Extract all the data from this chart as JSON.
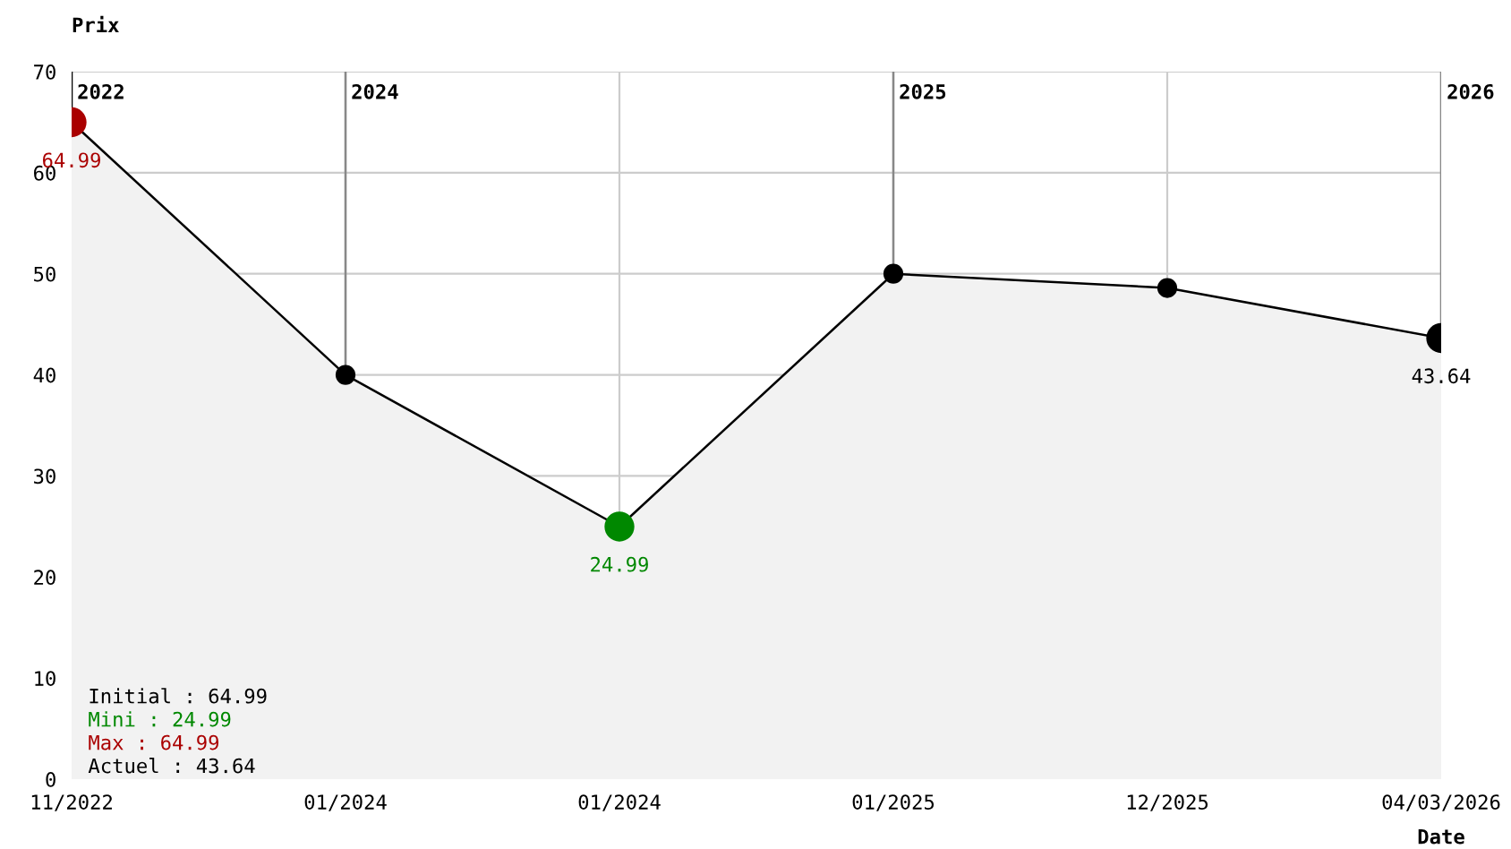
{
  "chart_data": {
    "type": "area",
    "ylabel": "Prix",
    "xlabel": "Date",
    "categories": [
      "11/2022",
      "01/2024",
      "01/2024",
      "01/2025",
      "12/2025",
      "04/03/2026"
    ],
    "series": [
      {
        "color": "#f2f2f2",
        "values": [
          64.99,
          40,
          24.99,
          50,
          48.6,
          43.64
        ],
        "colors": [
          "#aa0000",
          "#000000",
          "#008800",
          "#000000",
          "#000000",
          "#000000"
        ],
        "value_labels": [
          "64.99",
          null,
          "24.99",
          null,
          null,
          "43.64"
        ]
      }
    ],
    "ylim": [
      0,
      70
    ],
    "yticks": [
      0,
      10,
      20,
      30,
      40,
      50,
      60,
      70
    ],
    "grid": true,
    "marker": "circle",
    "ref_lines": [
      {
        "axis": "x",
        "value": "11/2022",
        "label": "2022"
      },
      {
        "axis": "x",
        "value": "01/2024",
        "label": "2024"
      },
      {
        "axis": "x",
        "value": "01/2025",
        "label": "2025"
      },
      {
        "axis": "x",
        "value": "04/03/2026",
        "label": "2026"
      }
    ],
    "annotations": [
      "Initial : 64.99",
      "Mini : 24.99",
      "Max : 64.99",
      "Actuel : 43.64"
    ]
  }
}
